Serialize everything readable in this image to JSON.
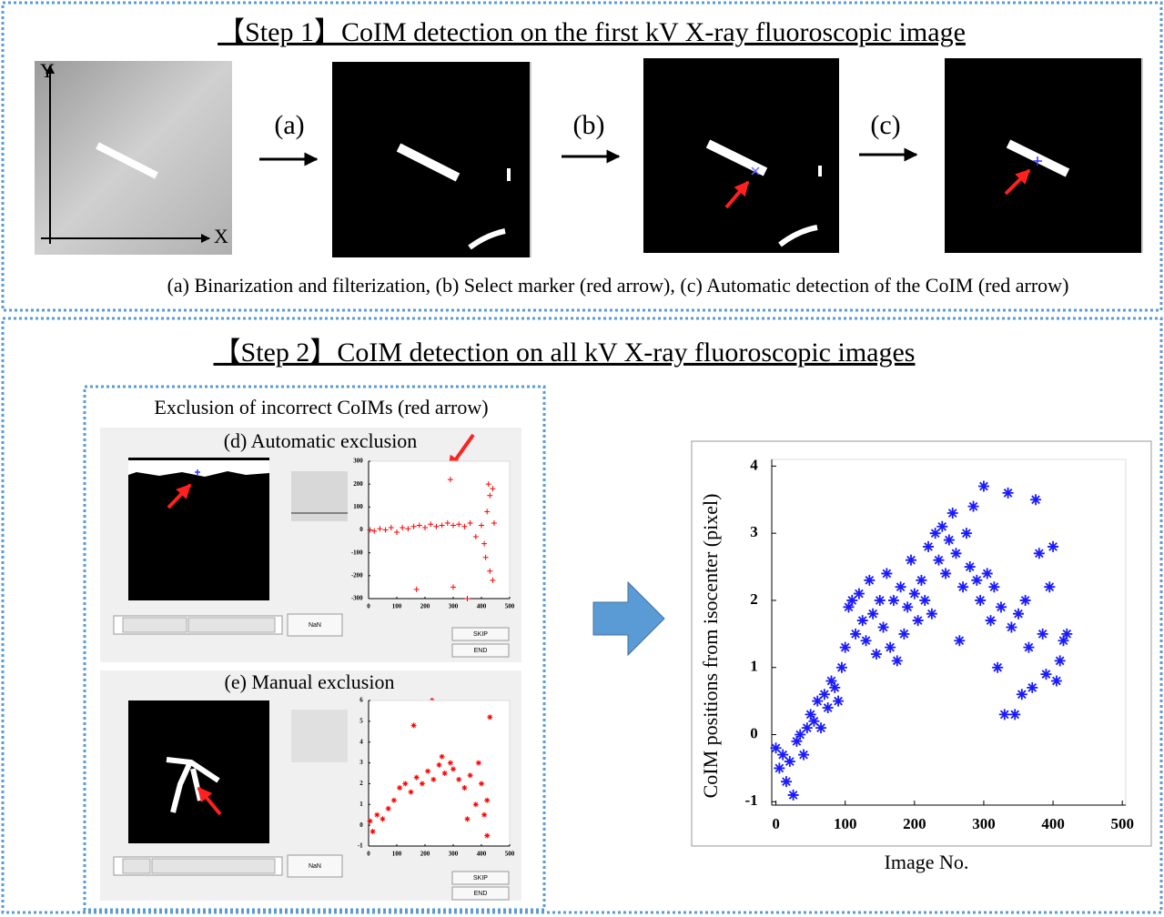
{
  "step1": {
    "title": "【Step 1】CoIM detection on the first kV X-ray fluoroscopic image",
    "axis_x": "X",
    "axis_y": "Y",
    "steps": [
      "(a)",
      "(b)",
      "(c)"
    ],
    "caption": "(a) Binarization and filterization, (b) Select marker (red arrow), (c) Automatic detection of the CoIM (red arrow)"
  },
  "step2": {
    "title": "【Step 2】CoIM detection on all kV X-ray fluoroscopic images",
    "exclusion_title": "Exclusion of incorrect CoIMs (red arrow)",
    "panels": [
      {
        "label": "(d) Automatic exclusion",
        "value_box": "NaN",
        "buttons": [
          "SKIP",
          "END"
        ]
      },
      {
        "label": "(e) Manual exclusion",
        "value_box": "NaN",
        "buttons": [
          "SKIP",
          "END"
        ]
      }
    ]
  },
  "chart_data": [
    {
      "type": "scatter",
      "x_label": "Image No.",
      "y_label": "CoIM positions from isocenter (pixel)",
      "color": "#1a1aff",
      "marker": "asterisk",
      "xlim": [
        -6,
        505
      ],
      "ylim": [
        -1.05,
        4.1
      ],
      "xticks": [
        0,
        100,
        200,
        300,
        400,
        500
      ],
      "yticks": [
        -1,
        0,
        1,
        2,
        3,
        4
      ],
      "x": [
        0,
        5,
        10,
        15,
        20,
        25,
        30,
        35,
        40,
        45,
        50,
        55,
        60,
        65,
        70,
        75,
        80,
        85,
        90,
        95,
        100,
        105,
        110,
        115,
        120,
        125,
        130,
        135,
        140,
        145,
        150,
        155,
        160,
        165,
        170,
        175,
        180,
        185,
        190,
        195,
        200,
        205,
        210,
        215,
        220,
        225,
        230,
        235,
        240,
        245,
        250,
        255,
        260,
        265,
        270,
        275,
        280,
        285,
        290,
        295,
        300,
        305,
        310,
        315,
        320,
        325,
        330,
        335,
        340,
        345,
        350,
        355,
        360,
        365,
        370,
        375,
        380,
        385,
        390,
        395,
        400,
        405,
        410,
        415,
        420
      ],
      "y": [
        -0.2,
        -0.5,
        -0.3,
        -0.7,
        -0.4,
        -0.9,
        -0.1,
        0.0,
        -0.3,
        0.1,
        0.3,
        0.2,
        0.5,
        0.1,
        0.6,
        0.4,
        0.8,
        0.7,
        0.5,
        1.0,
        1.3,
        1.9,
        2.0,
        1.5,
        2.1,
        1.7,
        1.4,
        2.3,
        1.8,
        1.2,
        2.0,
        1.6,
        2.4,
        1.3,
        2.0,
        1.1,
        2.2,
        1.5,
        1.9,
        2.6,
        2.1,
        1.7,
        2.3,
        2.0,
        2.8,
        1.8,
        3.0,
        2.6,
        3.1,
        2.4,
        2.9,
        3.3,
        2.7,
        1.4,
        2.2,
        3.0,
        2.5,
        3.4,
        2.3,
        2.0,
        3.7,
        2.4,
        1.7,
        2.2,
        1.0,
        1.9,
        0.3,
        3.6,
        1.6,
        0.3,
        1.8,
        0.6,
        2.0,
        1.3,
        0.7,
        3.5,
        2.7,
        1.5,
        0.9,
        2.2,
        2.8,
        0.8,
        1.1,
        1.4,
        1.5
      ]
    },
    {
      "type": "scatter",
      "color": "#ff0000",
      "marker": "plus",
      "xlim": [
        0,
        500
      ],
      "ylim": [
        -300,
        300
      ],
      "xticks": [
        0,
        100,
        200,
        300,
        400,
        500
      ],
      "yticks": [
        -300,
        -200,
        -100,
        0,
        100,
        200,
        300
      ],
      "x": [
        5,
        20,
        40,
        60,
        80,
        100,
        120,
        140,
        160,
        180,
        200,
        220,
        240,
        260,
        280,
        300,
        320,
        340,
        360,
        380,
        400,
        410,
        420,
        430,
        425,
        440,
        415,
        430,
        440,
        300,
        170,
        290,
        350,
        445
      ],
      "y": [
        0,
        -5,
        5,
        0,
        10,
        -10,
        10,
        5,
        15,
        20,
        10,
        25,
        15,
        20,
        30,
        20,
        25,
        15,
        30,
        -30,
        20,
        -60,
        80,
        150,
        200,
        180,
        -120,
        -180,
        -220,
        -250,
        -260,
        220,
        -300,
        30
      ]
    },
    {
      "type": "scatter",
      "color": "#ff0000",
      "marker": "asterisk",
      "xlim": [
        0,
        500
      ],
      "ylim": [
        -1,
        6
      ],
      "xticks": [
        0,
        100,
        200,
        300,
        400,
        500
      ],
      "yticks": [
        -1,
        0,
        1,
        2,
        3,
        4,
        5,
        6
      ],
      "x": [
        5,
        15,
        30,
        50,
        70,
        90,
        110,
        130,
        150,
        160,
        170,
        190,
        210,
        230,
        250,
        260,
        270,
        290,
        300,
        320,
        340,
        360,
        380,
        400,
        410,
        420,
        430,
        420,
        390,
        350
      ],
      "y": [
        0.2,
        -0.3,
        0.5,
        0.3,
        0.8,
        1.2,
        1.8,
        2.0,
        1.6,
        4.8,
        2.3,
        2.0,
        2.6,
        2.2,
        2.9,
        3.3,
        2.5,
        3.0,
        2.7,
        2.2,
        1.8,
        2.4,
        1.0,
        2.0,
        0.5,
        1.2,
        5.2,
        -0.5,
        3.0,
        0.3
      ]
    }
  ]
}
